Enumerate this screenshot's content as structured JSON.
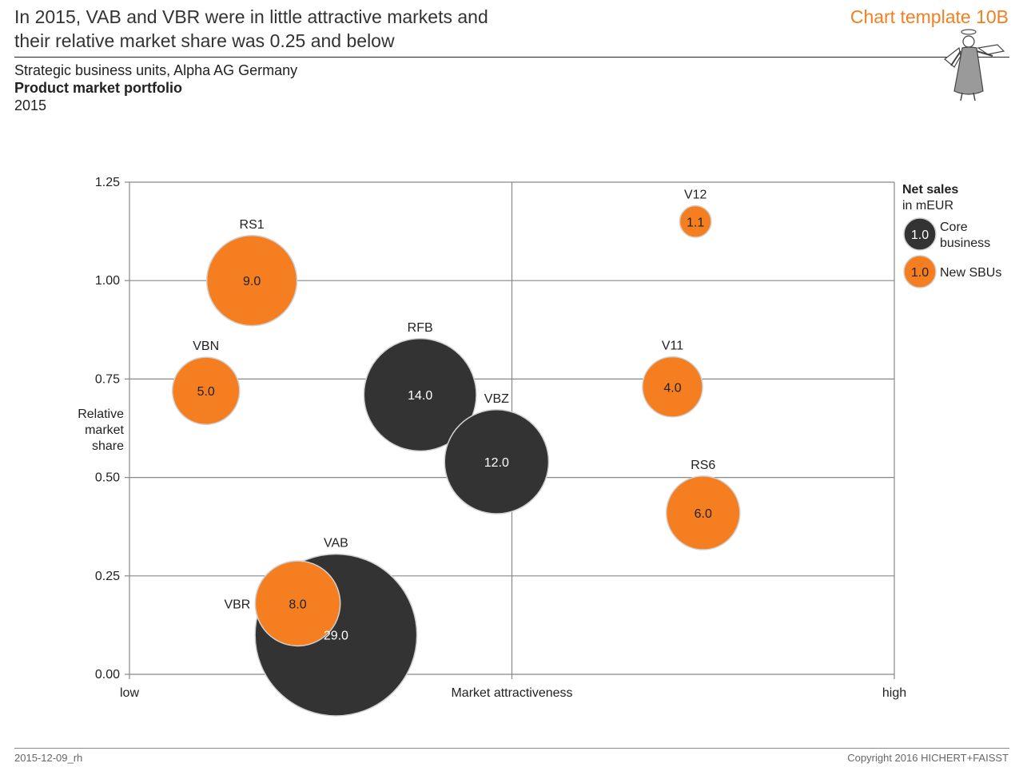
{
  "header": {
    "headline_line1": "In 2015, VAB and VBR were in little attractive markets and",
    "headline_line2": "their relative market share was 0.25 and below",
    "template_label": "Chart template 10B"
  },
  "subtitle": {
    "line1": "Strategic business units, Alpha AG Germany",
    "line2": "Product market portfolio",
    "line3": "2015"
  },
  "footer": {
    "date": "2015-12-09_rh",
    "copyright": "Copyright 2016 HICHERT+FAISST"
  },
  "colors": {
    "core": "#333333",
    "new": "#f47e20",
    "grid": "#888888",
    "accent": "#f47e20"
  },
  "chart_data": {
    "type": "bubble",
    "xlabel": "Market attractiveness",
    "x_tick_low": "low",
    "x_tick_high": "high",
    "ylabel": "Relative market share",
    "ylabel_lines": [
      "Relative",
      "market",
      "share"
    ],
    "xlim": [
      0,
      1
    ],
    "ylim": [
      0,
      1.25
    ],
    "y_ticks": [
      {
        "value": 0,
        "label": "0.00"
      },
      {
        "value": 0.25,
        "label": "0.25"
      },
      {
        "value": 0.5,
        "label": "0.50"
      },
      {
        "value": 0.75,
        "label": "0.75"
      },
      {
        "value": 1.0,
        "label": "1.00"
      },
      {
        "value": 1.25,
        "label": "1.25"
      }
    ],
    "x_gridlines": [
      0.5
    ],
    "legend": {
      "title": "Net sales",
      "unit": "in mEUR",
      "placement": "right",
      "items": [
        {
          "group": "core",
          "value_label": "1.0",
          "label_lines": [
            "Core",
            "business"
          ]
        },
        {
          "group": "new",
          "value_label": "1.0",
          "label_lines": [
            "New SBUs"
          ]
        }
      ]
    },
    "series": [
      {
        "name": "VAB",
        "group": "core",
        "x": 0.27,
        "y": 0.1,
        "value": 29.0,
        "value_label": "29.0"
      },
      {
        "name": "RFB",
        "group": "core",
        "x": 0.38,
        "y": 0.71,
        "value": 14.0,
        "value_label": "14.0"
      },
      {
        "name": "VBZ",
        "group": "core",
        "x": 0.48,
        "y": 0.54,
        "value": 12.0,
        "value_label": "12.0"
      },
      {
        "name": "RS1",
        "group": "new",
        "x": 0.16,
        "y": 1.0,
        "value": 9.0,
        "value_label": "9.0"
      },
      {
        "name": "VBN",
        "group": "new",
        "x": 0.1,
        "y": 0.72,
        "value": 5.0,
        "value_label": "5.0"
      },
      {
        "name": "V12",
        "group": "new",
        "x": 0.74,
        "y": 1.15,
        "value": 1.1,
        "value_label": "1.1"
      },
      {
        "name": "V11",
        "group": "new",
        "x": 0.71,
        "y": 0.73,
        "value": 4.0,
        "value_label": "4.0"
      },
      {
        "name": "RS6",
        "group": "new",
        "x": 0.75,
        "y": 0.41,
        "value": 6.0,
        "value_label": "6.0"
      },
      {
        "name": "VBR",
        "group": "new",
        "x": 0.22,
        "y": 0.18,
        "value": 8.0,
        "value_label": "8.0"
      }
    ]
  }
}
